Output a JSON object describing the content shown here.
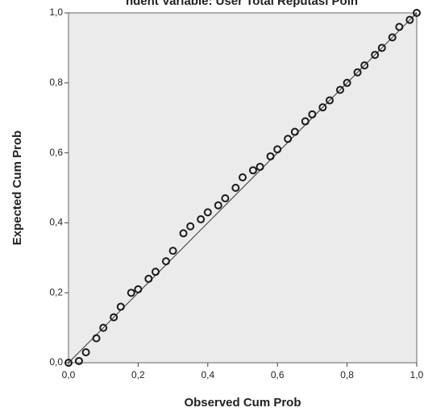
{
  "chart_data": {
    "type": "scatter",
    "title": "ndent Variable: User Total Reputasi Poin",
    "xlabel": "Observed Cum Prob",
    "ylabel": "Expected Cum Prob",
    "xlim": [
      0,
      1
    ],
    "ylim": [
      0,
      1
    ],
    "xticks": [
      {
        "value": 0,
        "label": "0,0"
      },
      {
        "value": 0.2,
        "label": "0,2"
      },
      {
        "value": 0.4,
        "label": "0,4"
      },
      {
        "value": 0.6,
        "label": "0,6"
      },
      {
        "value": 0.8,
        "label": "0,8"
      },
      {
        "value": 1,
        "label": "1,0"
      }
    ],
    "yticks": [
      {
        "value": 0,
        "label": "0,0"
      },
      {
        "value": 0.2,
        "label": "0,2"
      },
      {
        "value": 0.4,
        "label": "0,4"
      },
      {
        "value": 0.6,
        "label": "0,6"
      },
      {
        "value": 0.8,
        "label": "0,8"
      },
      {
        "value": 1,
        "label": "1,0"
      }
    ],
    "color": "#1a1a1a",
    "x": [
      0.0,
      0.03,
      0.05,
      0.08,
      0.1,
      0.13,
      0.15,
      0.18,
      0.2,
      0.23,
      0.25,
      0.28,
      0.3,
      0.33,
      0.35,
      0.38,
      0.4,
      0.43,
      0.45,
      0.48,
      0.5,
      0.53,
      0.55,
      0.58,
      0.6,
      0.63,
      0.65,
      0.68,
      0.7,
      0.73,
      0.75,
      0.78,
      0.8,
      0.83,
      0.85,
      0.88,
      0.9,
      0.93,
      0.95,
      0.98,
      1.0
    ],
    "values": [
      0.0,
      0.005,
      0.03,
      0.07,
      0.1,
      0.13,
      0.16,
      0.2,
      0.21,
      0.24,
      0.26,
      0.29,
      0.32,
      0.37,
      0.39,
      0.41,
      0.43,
      0.45,
      0.47,
      0.5,
      0.53,
      0.55,
      0.56,
      0.59,
      0.61,
      0.64,
      0.66,
      0.69,
      0.71,
      0.73,
      0.75,
      0.78,
      0.8,
      0.83,
      0.85,
      0.88,
      0.9,
      0.93,
      0.96,
      0.98,
      1.0
    ]
  }
}
